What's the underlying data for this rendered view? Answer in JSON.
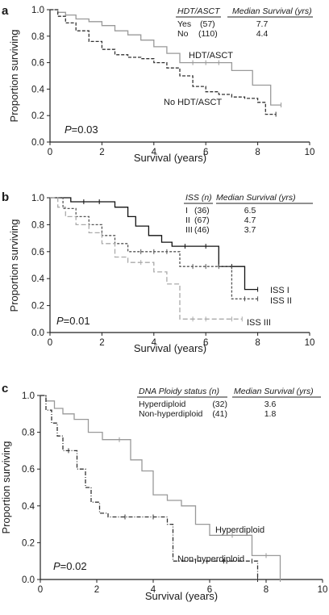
{
  "chart_data": [
    {
      "type": "line",
      "panel": "a",
      "xlabel": "Survival (years)",
      "ylabel": "Proportion surviving",
      "xlim": [
        0,
        10
      ],
      "ylim": [
        0,
        1.0
      ],
      "x_ticks": [
        "0",
        "2",
        "4",
        "6",
        "8",
        "10"
      ],
      "y_ticks": [
        "0.0",
        "0.2",
        "0.4",
        "0.6",
        "0.8",
        "1.0"
      ],
      "grid": false,
      "p_value_label": "P",
      "p_value_text": "=0.03",
      "legend": {
        "header_group": "HDT/ASCT",
        "header_median": "Median Survival (yrs)",
        "rows": [
          {
            "group": "Yes",
            "n": "(57)",
            "median": "7.7"
          },
          {
            "group": "No",
            "n": "(110)",
            "median": "4.4"
          }
        ]
      },
      "series": [
        {
          "name": "HDT/ASCT",
          "color": "#999999",
          "dash": "",
          "x": [
            0,
            0.3,
            0.6,
            1.0,
            1.5,
            2.0,
            2.5,
            3.0,
            3.5,
            4.0,
            4.5,
            5.0,
            5.5,
            6.0,
            6.5,
            7.0,
            7.8,
            8.5,
            8.9
          ],
          "y": [
            1.0,
            0.98,
            0.96,
            0.93,
            0.91,
            0.88,
            0.84,
            0.81,
            0.77,
            0.72,
            0.67,
            0.6,
            0.6,
            0.6,
            0.6,
            0.54,
            0.43,
            0.28,
            0.28
          ]
        },
        {
          "name": "No HDT/ASCT",
          "color": "#333333",
          "dash": "4,2",
          "x": [
            0,
            0.3,
            0.6,
            1.0,
            1.5,
            2.0,
            2.5,
            3.0,
            3.5,
            4.0,
            4.5,
            5.0,
            5.5,
            6.0,
            6.5,
            7.0,
            7.5,
            8.0,
            8.3,
            8.7
          ],
          "y": [
            1.0,
            0.95,
            0.9,
            0.84,
            0.76,
            0.7,
            0.66,
            0.64,
            0.63,
            0.6,
            0.56,
            0.5,
            0.42,
            0.38,
            0.36,
            0.34,
            0.33,
            0.3,
            0.21,
            0.21
          ]
        }
      ],
      "curve_labels": [
        "HDT/ASCT",
        "No HDT/ASCT"
      ]
    },
    {
      "type": "line",
      "panel": "b",
      "xlabel": "Survival (years)",
      "ylabel": "Proportion surviving",
      "xlim": [
        0,
        10
      ],
      "ylim": [
        0,
        1.0
      ],
      "x_ticks": [
        "0",
        "2",
        "4",
        "6",
        "8",
        "10"
      ],
      "y_ticks": [
        "0.0",
        "0.2",
        "0.4",
        "0.6",
        "0.8",
        "1.0"
      ],
      "grid": false,
      "p_value_label": "P",
      "p_value_text": "=0.01",
      "legend": {
        "header_group": "ISS (n)",
        "header_median": "Median Survival (yrs)",
        "rows": [
          {
            "group": "I",
            "n": "(36)",
            "median": "6.5"
          },
          {
            "group": "II",
            "n": "(67)",
            "median": "4.7"
          },
          {
            "group": "III",
            "n": "(46)",
            "median": "3.7"
          }
        ]
      },
      "series": [
        {
          "name": "ISS I",
          "color": "#111111",
          "dash": "",
          "x": [
            0,
            0.8,
            1.3,
            1.9,
            2.5,
            3.0,
            3.3,
            3.8,
            4.3,
            4.7,
            5.2,
            6.0,
            6.5,
            7.0,
            7.5,
            8.0
          ],
          "y": [
            1.0,
            0.97,
            0.97,
            0.97,
            0.93,
            0.86,
            0.79,
            0.72,
            0.67,
            0.64,
            0.64,
            0.64,
            0.49,
            0.49,
            0.32,
            0.32
          ]
        },
        {
          "name": "ISS II",
          "color": "#555555",
          "dash": "3,2",
          "x": [
            0,
            0.5,
            1.0,
            1.5,
            2.0,
            2.5,
            3.0,
            3.5,
            4.0,
            4.5,
            5.0,
            5.5,
            6.0,
            6.5,
            7.0,
            7.5,
            8.0
          ],
          "y": [
            1.0,
            0.92,
            0.86,
            0.8,
            0.72,
            0.66,
            0.6,
            0.6,
            0.6,
            0.6,
            0.49,
            0.49,
            0.49,
            0.49,
            0.25,
            0.25,
            0.25
          ]
        },
        {
          "name": "ISS III",
          "color": "#aaaaaa",
          "dash": "6,3",
          "x": [
            0,
            0.3,
            0.6,
            1.0,
            1.5,
            2.0,
            2.5,
            3.0,
            3.5,
            4.0,
            4.5,
            5.0,
            5.5,
            6.0,
            7.0,
            7.4
          ],
          "y": [
            1.0,
            0.93,
            0.86,
            0.8,
            0.74,
            0.66,
            0.56,
            0.52,
            0.52,
            0.45,
            0.36,
            0.1,
            0.1,
            0.1,
            0.1,
            0.1
          ]
        }
      ],
      "curve_labels": [
        "ISS I",
        "ISS II",
        "ISS III"
      ]
    },
    {
      "type": "line",
      "panel": "c",
      "xlabel": "Survival (years)",
      "ylabel": "Proportion surviving",
      "xlim": [
        0,
        10
      ],
      "ylim": [
        0,
        1.0
      ],
      "x_ticks": [
        "0",
        "2",
        "4",
        "6",
        "8",
        "10"
      ],
      "y_ticks": [
        "0.0",
        "0.2",
        "0.4",
        "0.6",
        "0.8",
        "1.0"
      ],
      "grid": false,
      "p_value_label": "P",
      "p_value_text": "=0.02",
      "legend": {
        "header_group": "DNA Ploidy status (n)",
        "header_median": "Median Survival (yrs)",
        "rows": [
          {
            "group": "Hyperdiploid",
            "n": "(32)",
            "median": "3.6"
          },
          {
            "group": "Non-hyperdiploid",
            "n": "(41)",
            "median": "1.8"
          }
        ]
      },
      "series": [
        {
          "name": "Hyperdiploid",
          "color": "#999999",
          "dash": "",
          "x": [
            0,
            0.2,
            0.5,
            0.8,
            1.2,
            1.7,
            2.2,
            2.8,
            3.2,
            3.6,
            4.0,
            4.5,
            5.0,
            5.5,
            6.0,
            6.8,
            7.5,
            8.0,
            8.5
          ],
          "y": [
            1.0,
            0.97,
            0.93,
            0.9,
            0.87,
            0.8,
            0.76,
            0.76,
            0.65,
            0.59,
            0.46,
            0.43,
            0.4,
            0.3,
            0.24,
            0.24,
            0.13,
            0.13,
            0.0
          ]
        },
        {
          "name": "Non-hyperdiploid",
          "color": "#333333",
          "dash": "5,2,1,2",
          "x": [
            0,
            0.2,
            0.4,
            0.6,
            0.8,
            1.0,
            1.3,
            1.6,
            1.8,
            2.1,
            2.4,
            3.0,
            4.0,
            4.5,
            4.7,
            5.5,
            6.5,
            7.5,
            7.7
          ],
          "y": [
            1.0,
            0.92,
            0.85,
            0.78,
            0.7,
            0.7,
            0.6,
            0.5,
            0.42,
            0.36,
            0.34,
            0.34,
            0.34,
            0.3,
            0.1,
            0.1,
            0.1,
            0.1,
            0.0
          ]
        }
      ],
      "curve_labels": [
        "Hyperdiploid",
        "Non-hyperdiploid"
      ]
    }
  ]
}
